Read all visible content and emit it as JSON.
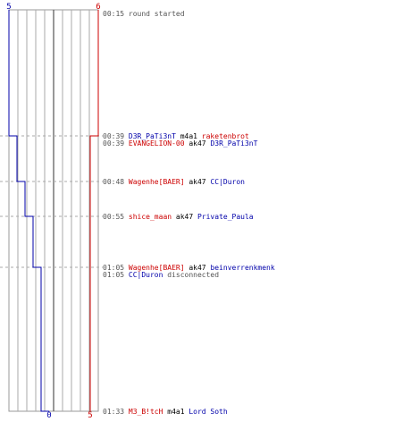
{
  "chart_data": {
    "type": "line",
    "title": "",
    "xlabel": "",
    "ylabel": "",
    "series": [
      {
        "color": "#0000aa",
        "start": 5,
        "end": 0,
        "steps": [
          [
            "00:15",
            5
          ],
          [
            "00:39",
            4
          ],
          [
            "00:48",
            3
          ],
          [
            "00:55",
            2
          ],
          [
            "01:05",
            1
          ],
          [
            "01:33",
            0
          ]
        ]
      },
      {
        "color": "#cc0000",
        "start": 6,
        "end": 5,
        "steps": [
          [
            "00:15",
            6
          ],
          [
            "00:39",
            5
          ]
        ]
      }
    ],
    "labels": {
      "blue_top": "5",
      "red_top": "6",
      "blue_bottom": "0",
      "red_bottom": "5"
    },
    "events": [
      {
        "time": "00:15",
        "parts": [
          {
            "t": "round started",
            "c": "msg"
          }
        ]
      },
      {
        "time": "00:39",
        "parts": [
          {
            "t": "D3R_PaTi3nT",
            "c": "blue"
          },
          {
            "t": " m4a1 ",
            "c": "weapon"
          },
          {
            "t": "raketenbrot",
            "c": "red"
          }
        ]
      },
      {
        "time": "00:39",
        "parts": [
          {
            "t": "EVANGELION-00",
            "c": "red"
          },
          {
            "t": " ak47 ",
            "c": "weapon"
          },
          {
            "t": "D3R_PaTi3nT",
            "c": "blue"
          }
        ]
      },
      {
        "time": "00:48",
        "parts": [
          {
            "t": "Wagenhe[BAER]",
            "c": "red"
          },
          {
            "t": " ak47 ",
            "c": "weapon"
          },
          {
            "t": "CC|Duron",
            "c": "blue"
          }
        ]
      },
      {
        "time": "00:55",
        "parts": [
          {
            "t": "shice_maan",
            "c": "red"
          },
          {
            "t": " ak47 ",
            "c": "weapon"
          },
          {
            "t": "Private_Paula",
            "c": "blue"
          }
        ]
      },
      {
        "time": "01:05",
        "parts": [
          {
            "t": "Wagenhe[BAER]",
            "c": "red"
          },
          {
            "t": " ak47 ",
            "c": "weapon"
          },
          {
            "t": "beinverrenkmenk",
            "c": "blue"
          }
        ]
      },
      {
        "time": "01:05",
        "parts": [
          {
            "t": "CC|Duron",
            "c": "blue"
          },
          {
            "t": " disconnected",
            "c": "msg"
          }
        ]
      },
      {
        "time": "01:33",
        "parts": [
          {
            "t": "M3_B!tcH",
            "c": "red"
          },
          {
            "t": " m4a1 ",
            "c": "weapon"
          },
          {
            "t": "Lord Soth",
            "c": "blue"
          }
        ]
      }
    ],
    "colors": {
      "blue": "#0000aa",
      "red": "#cc0000",
      "msg": "#555555",
      "weapon": "#000000",
      "time": "#555555"
    }
  }
}
